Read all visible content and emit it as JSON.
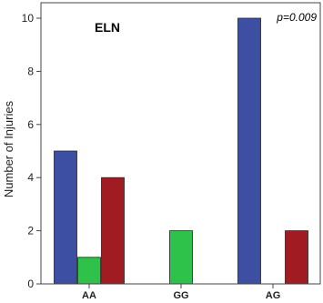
{
  "chart_data": {
    "type": "bar",
    "title": "ELN",
    "annotation": "p=0.009",
    "xlabel": "",
    "ylabel": "Number of Injuries",
    "categories": [
      "AA",
      "GG",
      "AG"
    ],
    "series": [
      {
        "color": "#3c4fa3",
        "values": [
          5,
          0,
          10
        ]
      },
      {
        "color": "#2ec24a",
        "values": [
          1,
          2,
          0
        ]
      },
      {
        "color": "#a11c22",
        "values": [
          4,
          0,
          2
        ]
      }
    ],
    "ylim": [
      0,
      10
    ],
    "yticks": [
      0,
      2,
      4,
      6,
      8,
      10
    ],
    "grid": false,
    "legend": "none"
  }
}
